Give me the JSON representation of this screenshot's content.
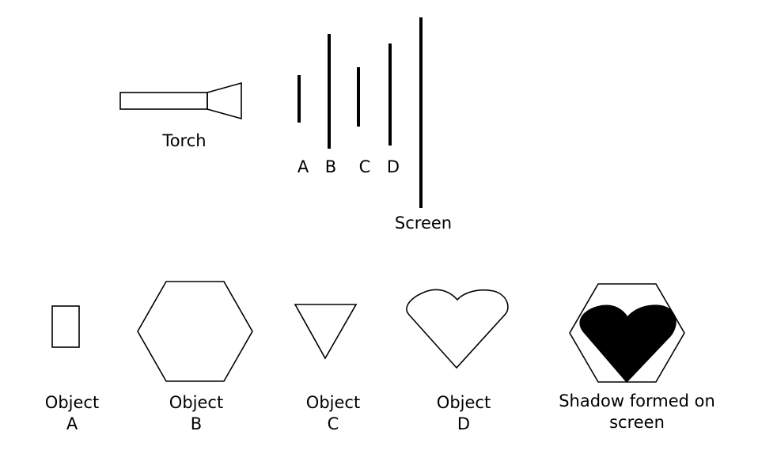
{
  "diagram": {
    "torch_label": "Torch",
    "screen_label": "Screen",
    "positions": [
      {
        "label": "A"
      },
      {
        "label": "B"
      },
      {
        "label": "C"
      },
      {
        "label": "D"
      }
    ],
    "objects": [
      {
        "line1": "Object",
        "line2": "A",
        "shape": "rectangle"
      },
      {
        "line1": "Object",
        "line2": "B",
        "shape": "hexagon"
      },
      {
        "line1": "Object",
        "line2": "C",
        "shape": "inverted-triangle"
      },
      {
        "line1": "Object",
        "line2": "D",
        "shape": "heart"
      }
    ],
    "shadow": {
      "line1": "Shadow formed on",
      "line2": "screen"
    }
  }
}
